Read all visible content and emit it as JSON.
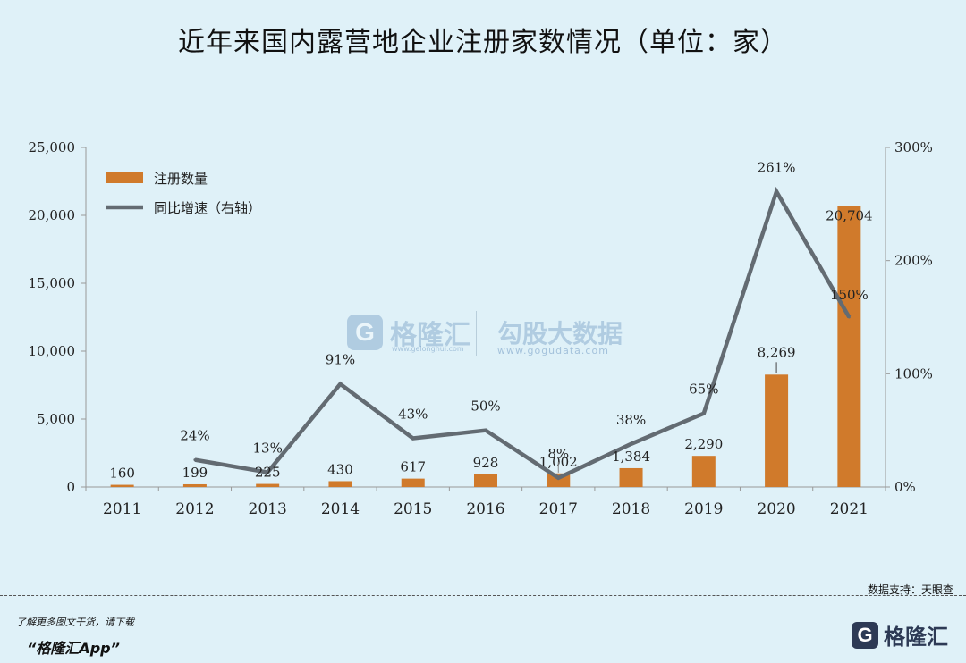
{
  "title": "近年来国内露营地企业注册家数情况（单位：家）",
  "source": "数据支持：天眼查",
  "footer": {
    "note": "了解更多图文干货，请下载",
    "app": "“格隆汇App”",
    "logo_text": "格隆汇",
    "logo_letter": "G"
  },
  "watermarks": {
    "brand": "格隆汇",
    "brand_url": "www.gelonghui.com",
    "data_brand": "勾股大数据",
    "data_url": "www.gogudata.com",
    "logo_letter": "G"
  },
  "chart_data": {
    "type": "bar",
    "categories": [
      "2011",
      "2012",
      "2013",
      "2014",
      "2015",
      "2016",
      "2017",
      "2018",
      "2019",
      "2020",
      "2021"
    ],
    "series": [
      {
        "name": "注册数量",
        "type": "bar",
        "axis": "left",
        "color": "#d07a2b",
        "values": [
          160,
          199,
          225,
          430,
          617,
          928,
          1002,
          1384,
          2290,
          8269,
          20704
        ],
        "labels": [
          "160",
          "199",
          "225",
          "430",
          "617",
          "928",
          "1,002",
          "1,384",
          "2,290",
          "8,269",
          "20,704"
        ]
      },
      {
        "name": "同比增速（右轴）",
        "type": "line",
        "axis": "right",
        "color": "#636b72",
        "x": [
          "2012",
          "2013",
          "2014",
          "2015",
          "2016",
          "2017",
          "2018",
          "2019",
          "2020",
          "2021"
        ],
        "values": [
          24,
          13,
          91,
          43,
          50,
          8,
          38,
          65,
          261,
          150
        ],
        "labels": [
          "24%",
          "13%",
          "91%",
          "43%",
          "50%",
          "8%",
          "38%",
          "65%",
          "261%",
          "150%"
        ]
      }
    ],
    "y_left": {
      "min": 0,
      "max": 25000,
      "ticks": [
        "0",
        "5,000",
        "10,000",
        "15,000",
        "20,000",
        "25,000"
      ],
      "tick_values": [
        0,
        5000,
        10000,
        15000,
        20000,
        25000
      ]
    },
    "y_right": {
      "min": 0,
      "max": 300,
      "ticks": [
        "0%",
        "100%",
        "200%",
        "300%"
      ],
      "tick_values": [
        0,
        100,
        200,
        300
      ]
    },
    "legend_position": "top-left",
    "grid": false
  }
}
